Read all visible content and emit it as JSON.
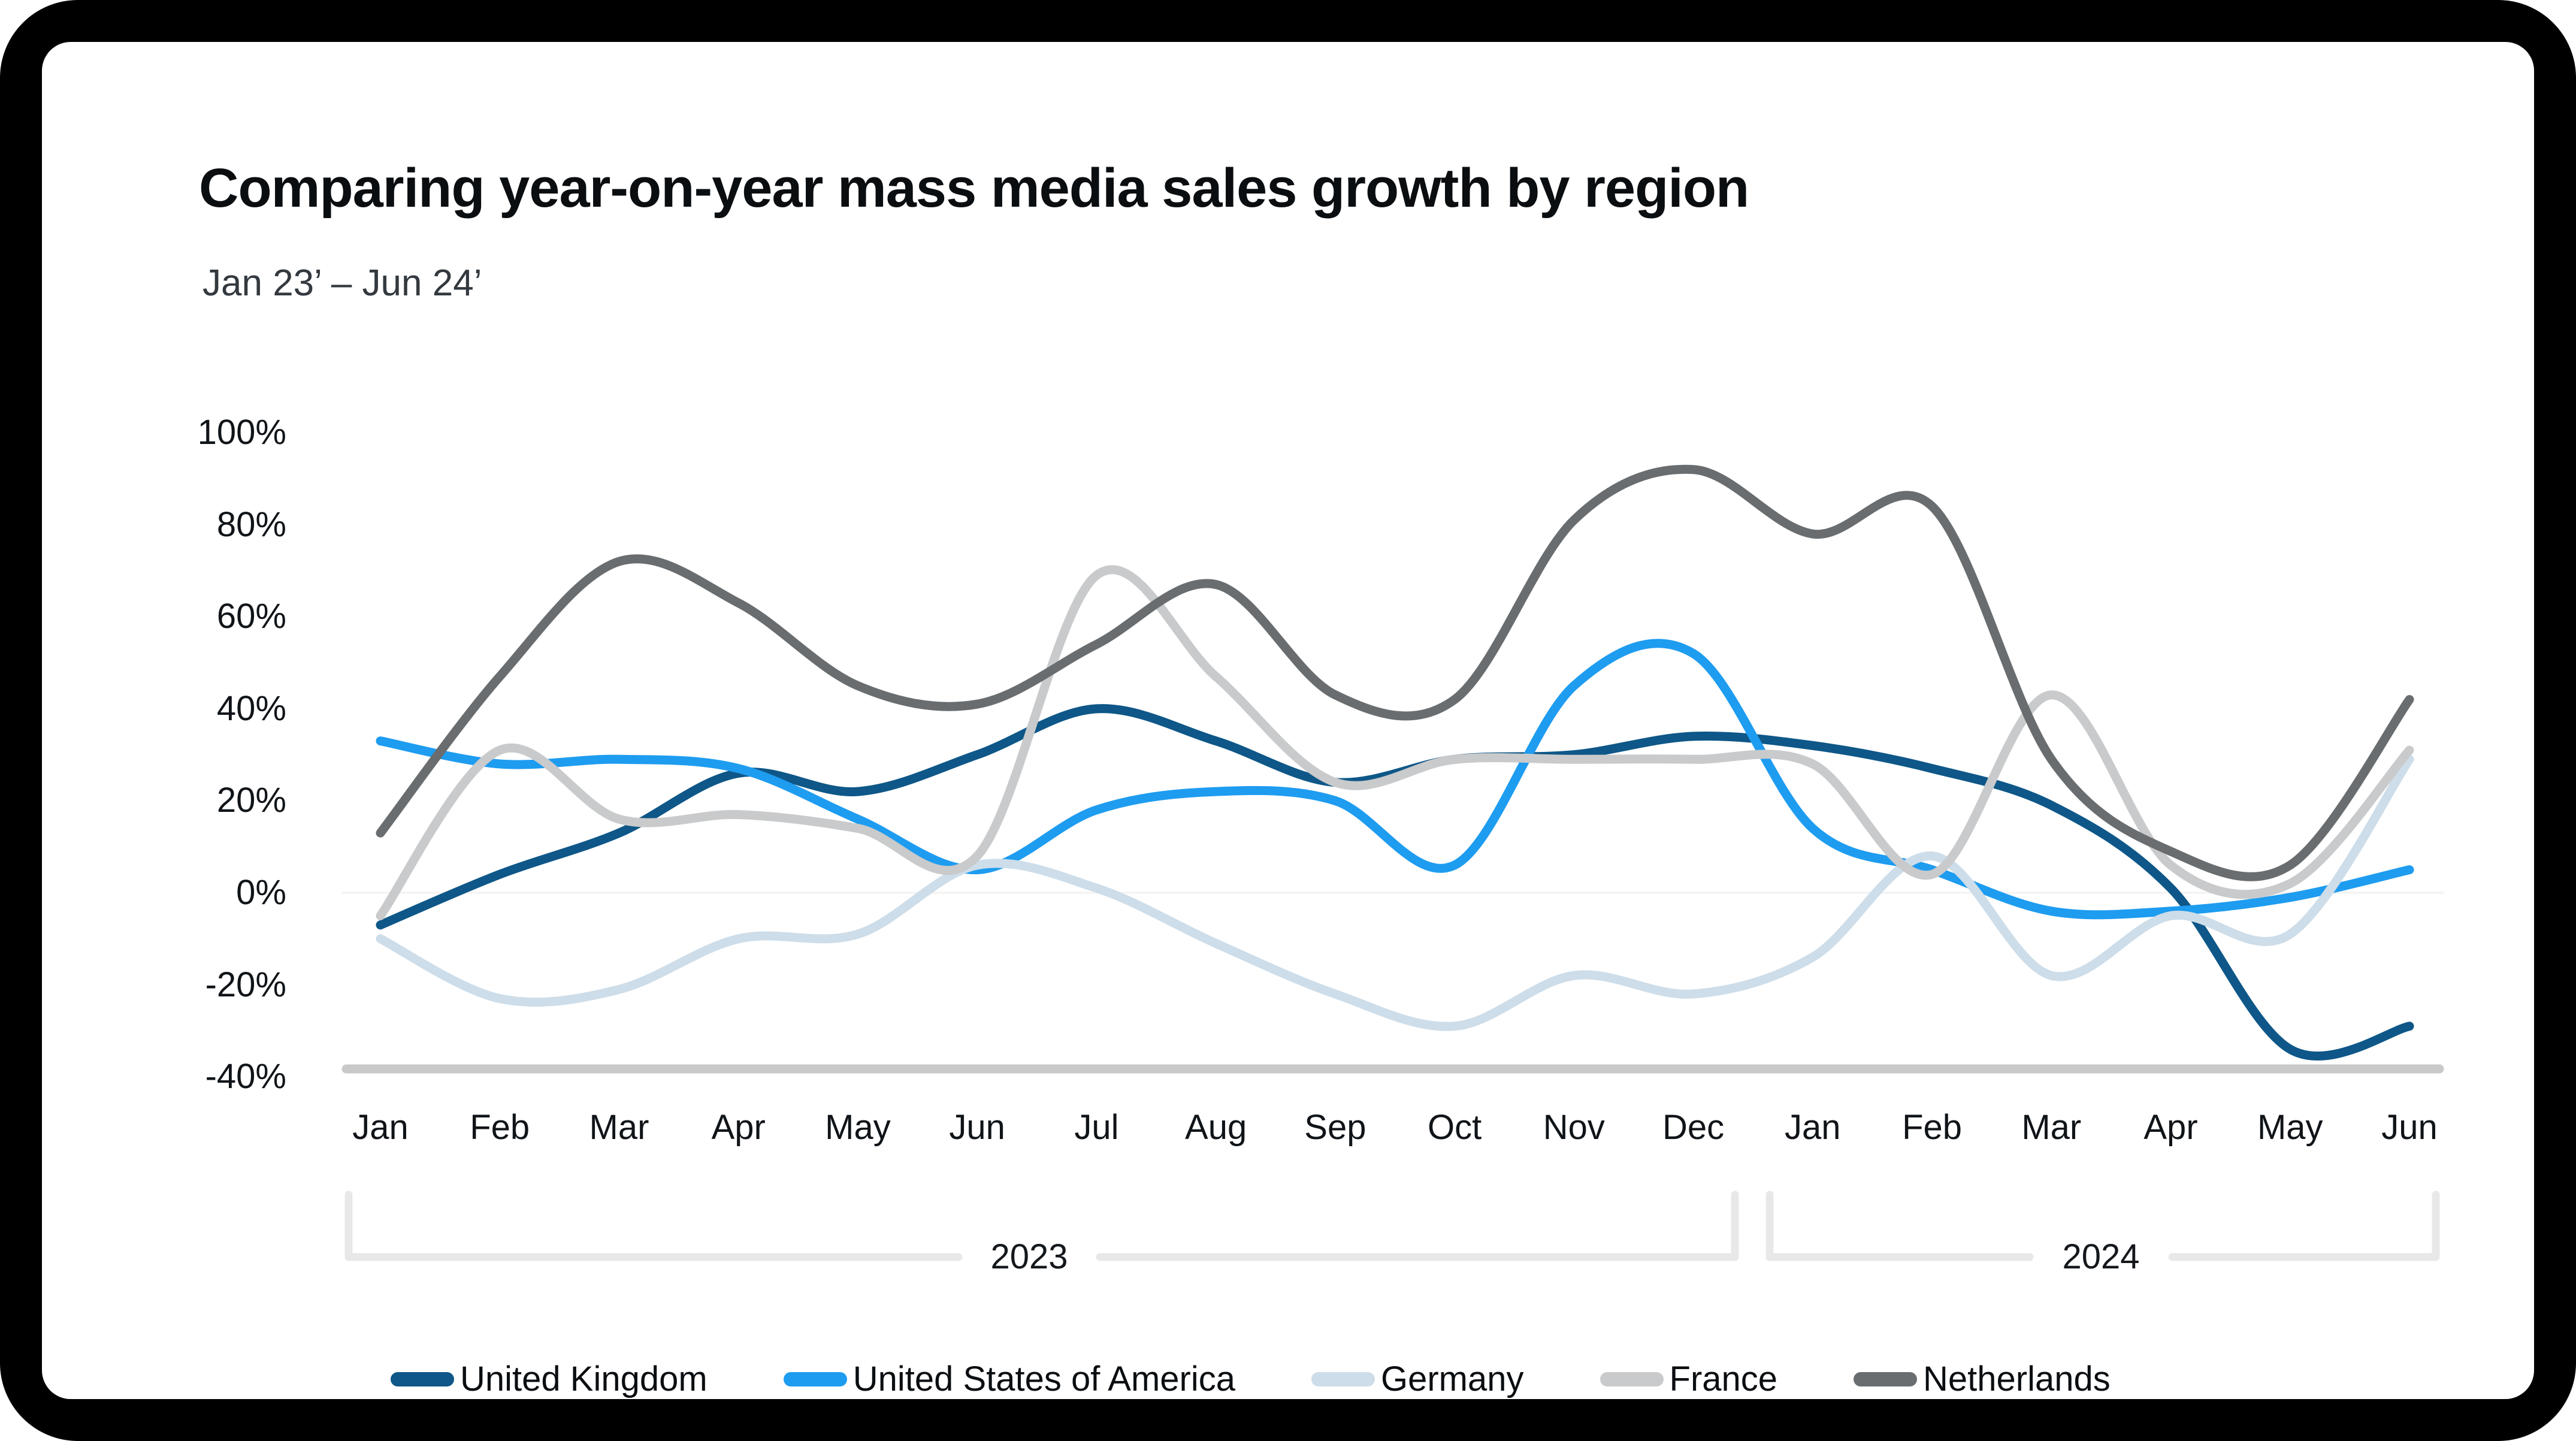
{
  "title": "Comparing year-on-year mass media sales growth by region",
  "subtitle": "Jan 23’ – Jun 24’",
  "frame": {
    "background": "#000000",
    "card_background": "#ffffff"
  },
  "chart_data": {
    "type": "line",
    "title": "Comparing year-on-year mass media sales growth by region",
    "subtitle": "Jan 23’ – Jun 24’",
    "unit": "%",
    "x": [
      "Jan",
      "Feb",
      "Mar",
      "Apr",
      "May",
      "Jun",
      "Jul",
      "Aug",
      "Sep",
      "Oct",
      "Nov",
      "Dec",
      "Jan",
      "Feb",
      "Mar",
      "Apr",
      "May",
      "Jun"
    ],
    "year_groups": [
      {
        "label": "2023",
        "span_months": 12
      },
      {
        "label": "2024",
        "span_months": 6
      }
    ],
    "y_ticks": [
      {
        "label": "100%",
        "value": 100
      },
      {
        "label": "80%",
        "value": 80
      },
      {
        "label": "60%",
        "value": 60
      },
      {
        "label": "40%",
        "value": 40
      },
      {
        "label": "20%",
        "value": 20
      },
      {
        "label": "0%",
        "value": 0
      },
      {
        "label": "-20%",
        "value": -20
      },
      {
        "label": "-40%",
        "value": -40
      }
    ],
    "ylim": [
      -40,
      100
    ],
    "grid": "zero-line-only",
    "legend_position": "bottom",
    "axis_line_color": "#c9c9c9",
    "bracket_color": "#e8e8e8",
    "zero_line_color": "#f5f5f5",
    "series": [
      {
        "name": "United Kingdom",
        "color": "#0e5788",
        "values": [
          -7,
          4,
          13,
          26,
          22,
          30,
          40,
          33,
          24,
          29,
          30,
          34,
          32,
          27,
          19,
          1,
          -34,
          -29
        ]
      },
      {
        "name": "United States of America",
        "color": "#1e9cf0",
        "values": [
          33,
          28,
          29,
          27,
          16,
          5,
          18,
          22,
          20,
          6,
          45,
          52,
          14,
          5,
          -4,
          -4,
          -1,
          5
        ]
      },
      {
        "name": "Germany",
        "color": "#cddde9",
        "values": [
          -10,
          -23,
          -21,
          -10,
          -9,
          6,
          1,
          -11,
          -22,
          -29,
          -18,
          -22,
          -14,
          8,
          -18,
          -5,
          -9,
          29
        ]
      },
      {
        "name": "France",
        "color": "#c9cacb",
        "values": [
          -5,
          31,
          16,
          17,
          14,
          8,
          69,
          47,
          24,
          29,
          29,
          29,
          28,
          4,
          43,
          6,
          2,
          31
        ]
      },
      {
        "name": "Netherlands",
        "color": "#696d6f",
        "values": [
          13,
          47,
          72,
          63,
          45,
          41,
          54,
          67,
          43,
          42,
          81,
          92,
          78,
          84,
          29,
          9,
          6,
          42
        ]
      }
    ]
  }
}
